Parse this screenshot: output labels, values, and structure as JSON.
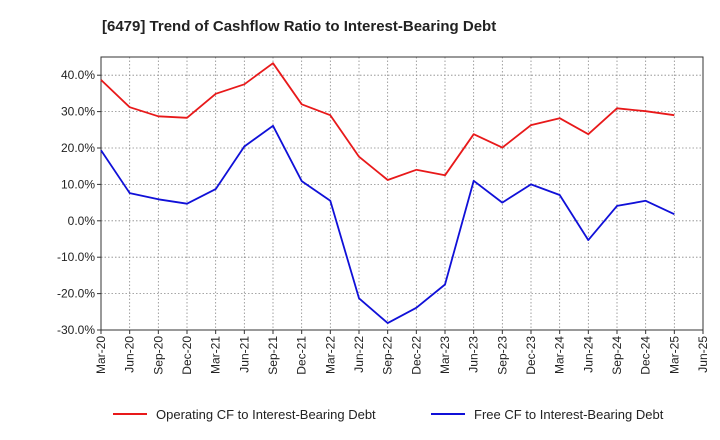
{
  "chart_data": {
    "type": "line",
    "title": "[6479]  Trend of Cashflow Ratio to Interest-Bearing Debt",
    "xlabel": "",
    "ylabel": "",
    "categories": [
      "Mar-20",
      "Jun-20",
      "Sep-20",
      "Dec-20",
      "Mar-21",
      "Jun-21",
      "Sep-21",
      "Dec-21",
      "Mar-22",
      "Jun-22",
      "Sep-22",
      "Dec-22",
      "Mar-23",
      "Jun-23",
      "Sep-23",
      "Dec-23",
      "Mar-24",
      "Jun-24",
      "Sep-24",
      "Dec-24",
      "Mar-25",
      "Jun-25"
    ],
    "ylim": [
      -30,
      45
    ],
    "yticks": [
      -30,
      -20,
      -10,
      0,
      10,
      20,
      30,
      40
    ],
    "ytick_labels": [
      "-30.0%",
      "-20.0%",
      "-10.0%",
      "0.0%",
      "10.0%",
      "20.0%",
      "30.0%",
      "40.0%"
    ],
    "grid": true,
    "legend_position": "bottom",
    "series": [
      {
        "name": "Operating CF to Interest-Bearing Debt",
        "color": "#e8191a",
        "values": [
          38.7,
          31.2,
          28.7,
          28.3,
          34.9,
          37.5,
          43.3,
          32.0,
          29.0,
          17.6,
          11.2,
          14.0,
          12.5,
          23.8,
          20.1,
          26.3,
          28.2,
          23.8,
          30.9,
          30.1,
          29.0,
          null
        ]
      },
      {
        "name": "Free CF to Interest-Bearing Debt",
        "color": "#1010d8",
        "values": [
          19.4,
          7.6,
          5.9,
          4.7,
          8.7,
          20.4,
          26.1,
          10.9,
          5.5,
          -21.3,
          -28.1,
          -23.9,
          -17.5,
          11.0,
          5.0,
          10.0,
          7.1,
          -5.3,
          4.1,
          5.5,
          1.8,
          null
        ]
      }
    ]
  }
}
